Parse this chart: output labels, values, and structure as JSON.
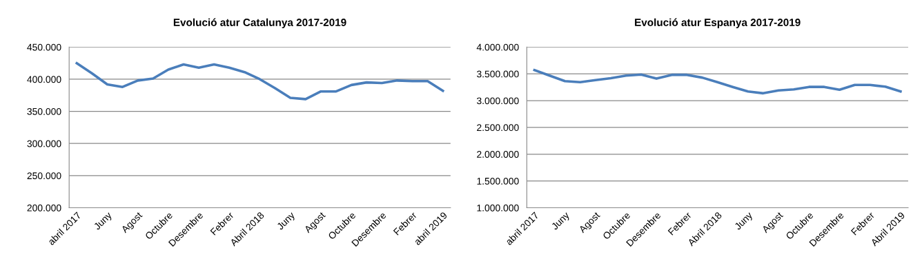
{
  "chart_data": [
    {
      "type": "line",
      "title": "Evolució atur Catalunya 2017-2019",
      "categories": [
        "abril 2017",
        null,
        "Juny",
        null,
        "Agost",
        null,
        "Octubre",
        null,
        "Desembre",
        null,
        "Febrer",
        null,
        "Abril 2018",
        null,
        "Juny",
        null,
        "Agost",
        null,
        "Octubre",
        null,
        "Desembre",
        null,
        "Febrer",
        null,
        "abril 2019"
      ],
      "series": [
        {
          "color": "#4a7ebb",
          "values": [
            425000,
            409000,
            392000,
            388000,
            398000,
            401000,
            415000,
            423000,
            418000,
            423000,
            418000,
            411000,
            400000,
            386000,
            371000,
            369000,
            381000,
            381000,
            391000,
            395000,
            394000,
            398000,
            397000,
            397000,
            382000
          ]
        }
      ],
      "ylim": [
        200000,
        450000
      ],
      "yticks": [
        {
          "value": 200000,
          "label": "200.000"
        },
        {
          "value": 250000,
          "label": "250.000"
        },
        {
          "value": 300000,
          "label": "300.000"
        },
        {
          "value": 350000,
          "label": "350.000"
        },
        {
          "value": 400000,
          "label": "400.000"
        },
        {
          "value": 450000,
          "label": "450.000"
        }
      ],
      "grid": "y",
      "legend": false,
      "marker": "none",
      "line_style": "solid"
    },
    {
      "type": "line",
      "title": "Evolució atur Espanya 2017-2019",
      "categories": [
        "abril 2017",
        null,
        "Juny",
        null,
        "Agost",
        null,
        "Octubre",
        null,
        "Desembre",
        null,
        "Febrer",
        null,
        "Abril 2018",
        null,
        "Juny",
        null,
        "Agost",
        null,
        "Octubre",
        null,
        "Desembre",
        null,
        "Febrer",
        null,
        "Abril 2019"
      ],
      "series": [
        {
          "color": "#4a7ebb",
          "values": [
            3570000,
            3467000,
            3364000,
            3345000,
            3383000,
            3420000,
            3467000,
            3486000,
            3411000,
            3481000,
            3481000,
            3430000,
            3345000,
            3256000,
            3171000,
            3138000,
            3190000,
            3209000,
            3256000,
            3256000,
            3204000,
            3293000,
            3293000,
            3261000,
            3171000
          ]
        }
      ],
      "ylim": [
        1000000,
        4000000
      ],
      "yticks": [
        {
          "value": 1000000,
          "label": "1.000.000"
        },
        {
          "value": 1500000,
          "label": "1.500.000"
        },
        {
          "value": 2000000,
          "label": "2.000.000"
        },
        {
          "value": 2500000,
          "label": "2.500.000"
        },
        {
          "value": 3000000,
          "label": "3.000.000"
        },
        {
          "value": 3500000,
          "label": "3.500.000"
        },
        {
          "value": 4000000,
          "label": "4.000.000"
        }
      ],
      "grid": "y",
      "legend": false,
      "marker": "none",
      "line_style": "solid"
    }
  ]
}
